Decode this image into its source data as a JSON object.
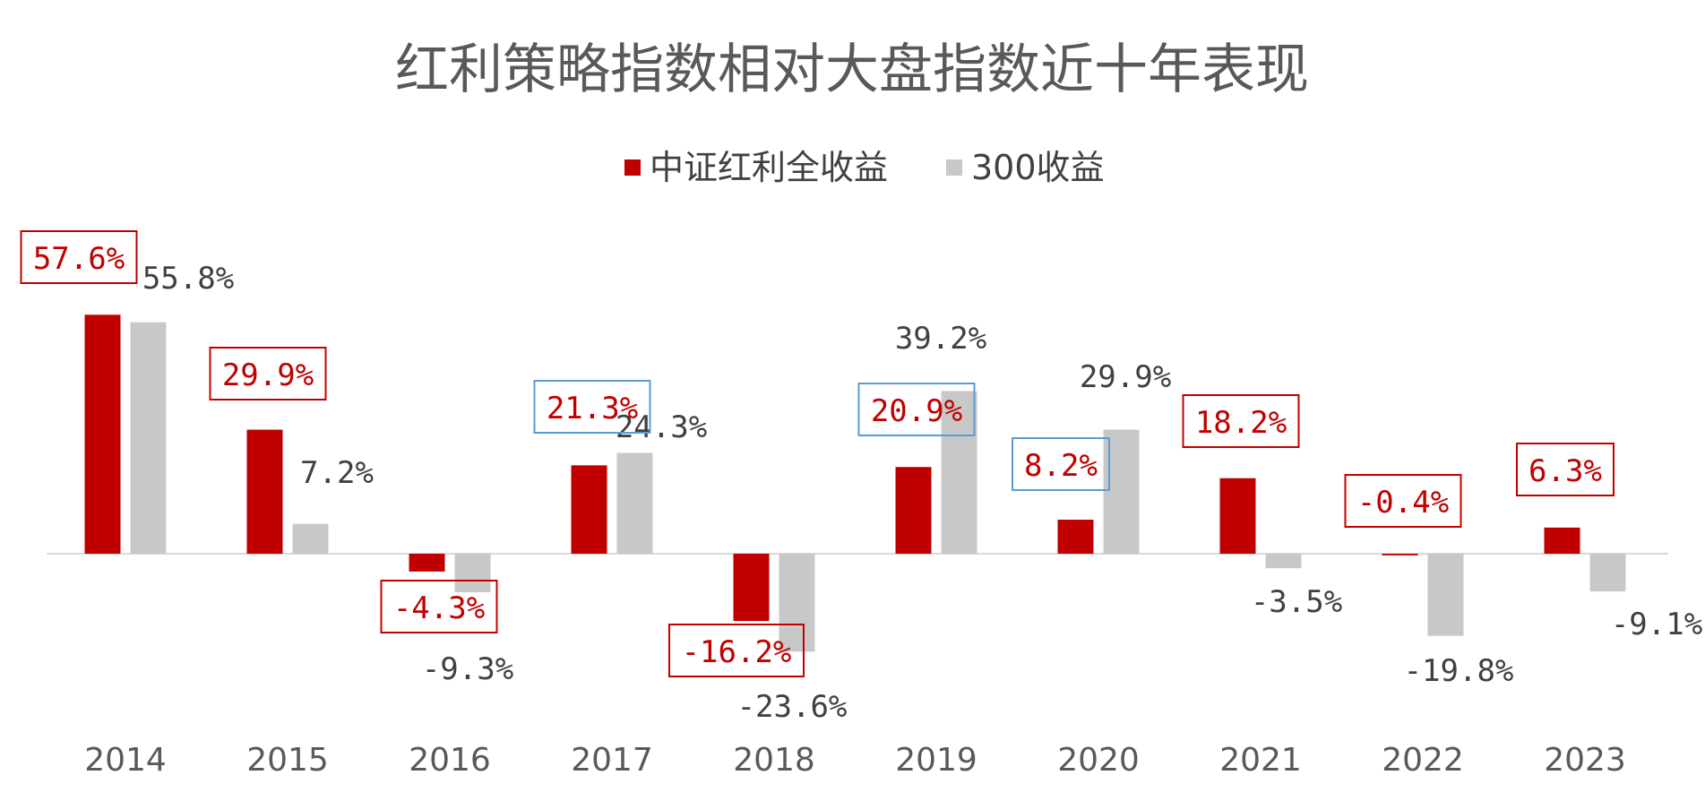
{
  "chart_data": {
    "type": "bar",
    "title": "红利策略指数相对大盘指数近十年表现",
    "categories": [
      "2014",
      "2015",
      "2016",
      "2017",
      "2018",
      "2019",
      "2020",
      "2021",
      "2022",
      "2023"
    ],
    "series": [
      {
        "name": "中证红利全收益",
        "color": "#c00000",
        "values": [
          57.6,
          29.9,
          -4.3,
          21.3,
          -16.2,
          20.9,
          8.2,
          18.2,
          -0.4,
          6.3
        ],
        "labels": [
          "57.6%",
          "29.9%",
          "-4.3%",
          "21.3%",
          "-16.2%",
          "20.9%",
          "8.2%",
          "18.2%",
          "-0.4%",
          "6.3%"
        ],
        "label_box_colors": [
          "#c00000",
          "#c00000",
          "#c00000",
          "#5b9bd5",
          "#c00000",
          "#5b9bd5",
          "#5b9bd5",
          "#c00000",
          "#c00000",
          "#c00000"
        ]
      },
      {
        "name": "300收益",
        "color": "#c8c8c8",
        "values": [
          55.8,
          7.2,
          -9.3,
          24.3,
          -23.6,
          39.2,
          29.9,
          -3.5,
          -19.8,
          -9.1
        ],
        "labels": [
          "55.8%",
          "7.2%",
          "-9.3%",
          "24.3%",
          "-23.6%",
          "39.2%",
          "29.9%",
          "-3.5%",
          "-19.8%",
          "-9.1%"
        ]
      }
    ],
    "ylim": [
      -35,
      65
    ],
    "grid": false,
    "legend_position": "top-center",
    "label_text_color_series0": "#c00000",
    "label_text_color_series1": "#404040"
  }
}
